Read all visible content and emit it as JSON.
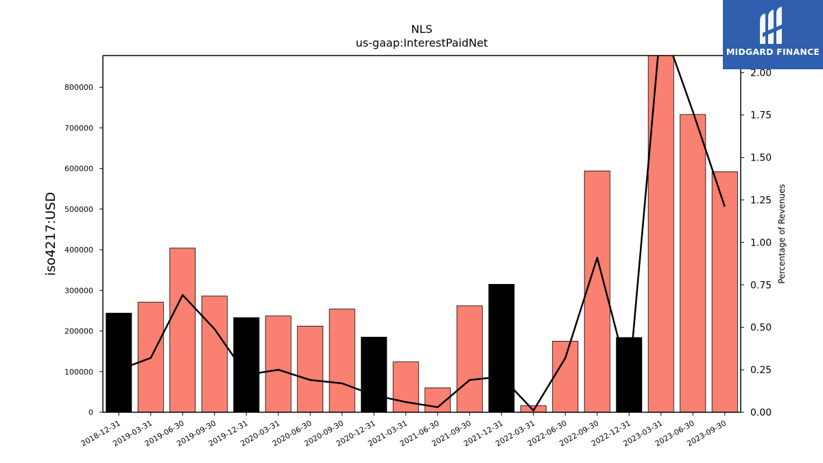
{
  "chart_data": {
    "type": "bar",
    "title": "NLS",
    "subtitle": "us-gaap:InterestPaidNet",
    "ylabel": "iso4217:USD",
    "y2label": "Percentage of Revenues",
    "categories": [
      "2018-12-31",
      "2019-03-31",
      "2019-06-30",
      "2019-09-30",
      "2019-12-31",
      "2020-03-31",
      "2020-06-30",
      "2020-09-30",
      "2020-12-31",
      "2021-03-31",
      "2021-06-30",
      "2021-09-30",
      "2021-12-31",
      "2022-03-31",
      "2022-06-30",
      "2022-09-30",
      "2022-12-31",
      "2023-03-31",
      "2023-06-30",
      "2023-09-30"
    ],
    "series": [
      {
        "type": "bar",
        "axis": "left",
        "values": [
          244000,
          271000,
          404000,
          286000,
          233000,
          237000,
          212000,
          254000,
          185000,
          124000,
          60000,
          262000,
          315000,
          16000,
          175000,
          594000,
          184000,
          880000,
          733000,
          592000
        ],
        "colors": [
          "#000000",
          "#fa8072",
          "#fa8072",
          "#fa8072",
          "#000000",
          "#fa8072",
          "#fa8072",
          "#fa8072",
          "#000000",
          "#fa8072",
          "#fa8072",
          "#fa8072",
          "#000000",
          "#fa8072",
          "#fa8072",
          "#fa8072",
          "#000000",
          "#fa8072",
          "#fa8072",
          "#fa8072"
        ]
      },
      {
        "type": "line",
        "axis": "right",
        "values": [
          0.25,
          0.32,
          0.69,
          0.49,
          0.22,
          0.25,
          0.19,
          0.17,
          0.1,
          0.06,
          0.03,
          0.19,
          0.21,
          0.01,
          0.32,
          0.91,
          0.19,
          2.3,
          1.77,
          1.21
        ],
        "color": "#000000"
      }
    ],
    "ylim": [
      0,
      878000
    ],
    "y2lim": [
      0,
      2.1
    ],
    "yticks": [
      0,
      100000,
      200000,
      300000,
      400000,
      500000,
      600000,
      700000,
      800000
    ],
    "ytick_labels": [
      "0",
      "100000",
      "200000",
      "300000",
      "400000",
      "500000",
      "600000",
      "700000",
      "800000"
    ],
    "y2ticks": [
      0,
      0.25,
      0.5,
      0.75,
      1.0,
      1.25,
      1.5,
      1.75,
      2.0
    ],
    "y2tick_labels": [
      "0.00",
      "0.25",
      "0.50",
      "0.75",
      "1.00",
      "1.25",
      "1.50",
      "1.75",
      "2.00"
    ],
    "grid": false,
    "colors": {
      "highlight": "#000000",
      "bar": "#fa8072",
      "line": "#000000"
    }
  },
  "logo": {
    "text": "MIDGARD FINANCE",
    "background": "#2f5fae"
  }
}
